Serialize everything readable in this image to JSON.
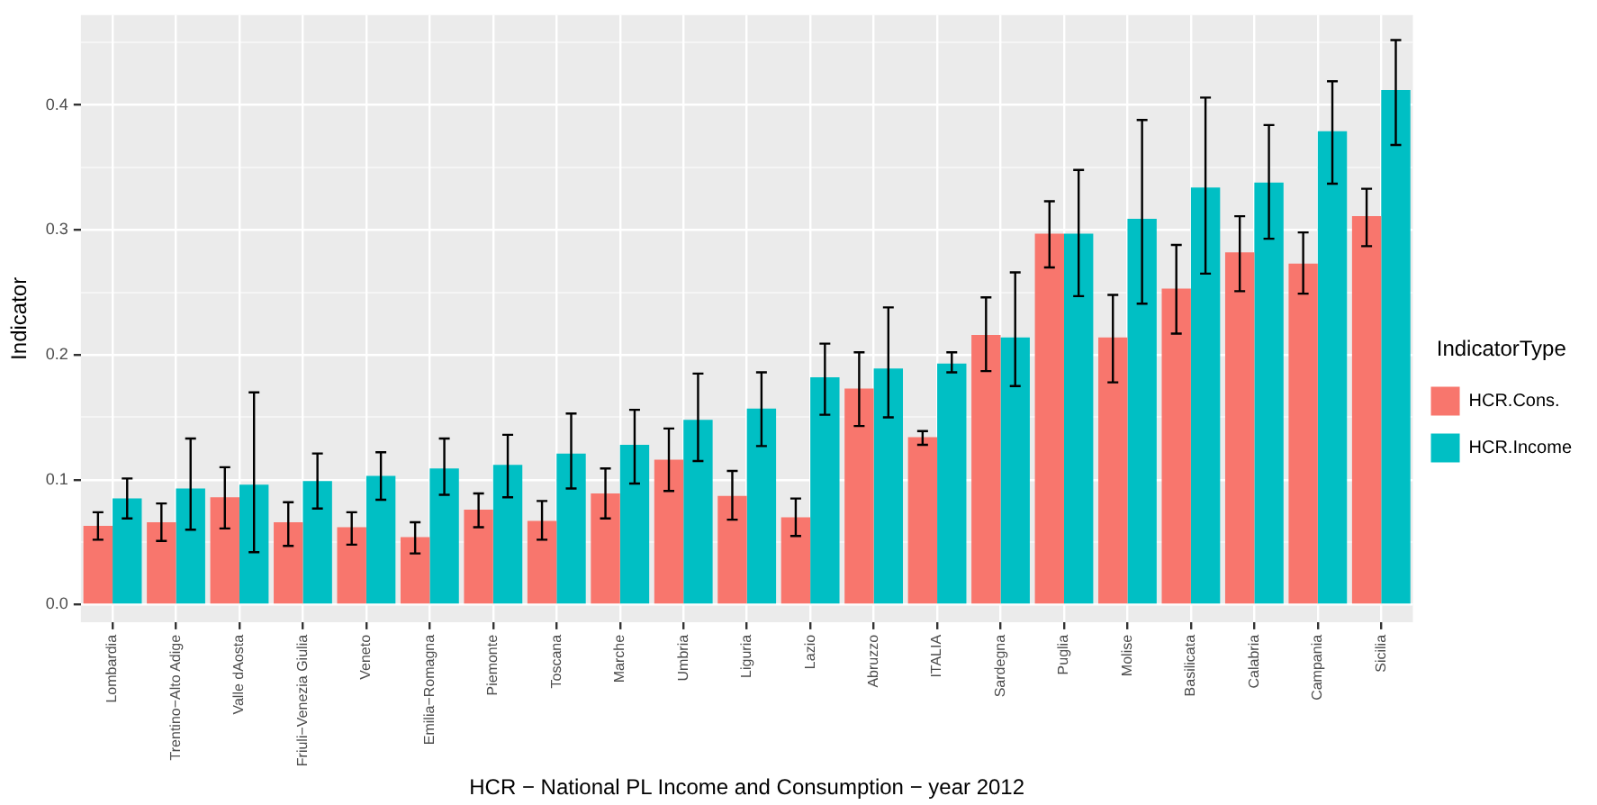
{
  "chart_data": {
    "type": "bar",
    "xlabel": "HCR − National PL Income and Consumption − year 2012",
    "ylabel": "Indicator",
    "legend_title": "IndicatorType",
    "legend": "right",
    "grid": true,
    "categories": [
      "Lombardia",
      "Trentino−Alto Adige",
      "Valle dAosta",
      "Friuli−Venezia Giulia",
      "Veneto",
      "Emilia−Romagna",
      "Piemonte",
      "Toscana",
      "Marche",
      "Umbria",
      "Liguria",
      "Lazio",
      "Abruzzo",
      "ITALIA",
      "Sardegna",
      "Puglia",
      "Molise",
      "Basilicata",
      "Calabria",
      "Campania",
      "Sicilia"
    ],
    "ylim": [
      -0.014,
      0.472
    ],
    "yticks": [
      {
        "value": 0,
        "label": "0.0"
      },
      {
        "value": 0.05,
        "label": null
      },
      0.1,
      {
        "value": 0.15,
        "label": null
      },
      0.2,
      {
        "value": 0.25,
        "label": null
      },
      0.3,
      {
        "value": 0.35,
        "label": null
      },
      0.4,
      {
        "value": 0.45,
        "label": null
      }
    ],
    "series": [
      {
        "name": "HCR.Cons.",
        "color": "#f8766d",
        "values": [
          0.063,
          0.066,
          0.086,
          0.066,
          0.062,
          0.054,
          0.076,
          0.067,
          0.089,
          0.116,
          0.087,
          0.07,
          0.173,
          0.134,
          0.216,
          0.297,
          0.214,
          0.253,
          0.282,
          0.273,
          0.311
        ],
        "errors": [
          [
            0.052,
            0.074
          ],
          [
            0.051,
            0.081
          ],
          [
            0.061,
            0.11
          ],
          [
            0.047,
            0.082
          ],
          [
            0.048,
            0.074
          ],
          [
            0.041,
            0.066
          ],
          [
            0.062,
            0.089
          ],
          [
            0.052,
            0.083
          ],
          [
            0.069,
            0.109
          ],
          [
            0.091,
            0.141
          ],
          [
            0.068,
            0.107
          ],
          [
            0.055,
            0.085
          ],
          [
            0.143,
            0.202
          ],
          [
            0.128,
            0.139
          ],
          [
            0.187,
            0.246
          ],
          [
            0.27,
            0.323
          ],
          [
            0.178,
            0.248
          ],
          [
            0.217,
            0.288
          ],
          [
            0.251,
            0.311
          ],
          [
            0.249,
            0.298
          ],
          [
            0.287,
            0.333
          ]
        ]
      },
      {
        "name": "HCR.Income",
        "color": "#00bfc4",
        "values": [
          0.085,
          0.093,
          0.096,
          0.099,
          0.103,
          0.109,
          0.112,
          0.121,
          0.128,
          0.148,
          0.157,
          0.182,
          0.189,
          0.193,
          0.214,
          0.297,
          0.309,
          0.334,
          0.338,
          0.379,
          0.412
        ],
        "errors": [
          [
            0.069,
            0.101
          ],
          [
            0.06,
            0.133
          ],
          [
            0.042,
            0.17
          ],
          [
            0.077,
            0.121
          ],
          [
            0.084,
            0.122
          ],
          [
            0.088,
            0.133
          ],
          [
            0.086,
            0.136
          ],
          [
            0.093,
            0.153
          ],
          [
            0.097,
            0.156
          ],
          [
            0.115,
            0.185
          ],
          [
            0.127,
            0.186
          ],
          [
            0.152,
            0.209
          ],
          [
            0.15,
            0.238
          ],
          [
            0.186,
            0.202
          ],
          [
            0.175,
            0.266
          ],
          [
            0.247,
            0.348
          ],
          [
            0.241,
            0.388
          ],
          [
            0.265,
            0.406
          ],
          [
            0.293,
            0.384
          ],
          [
            0.337,
            0.419
          ],
          [
            0.368,
            0.452
          ]
        ]
      }
    ]
  }
}
